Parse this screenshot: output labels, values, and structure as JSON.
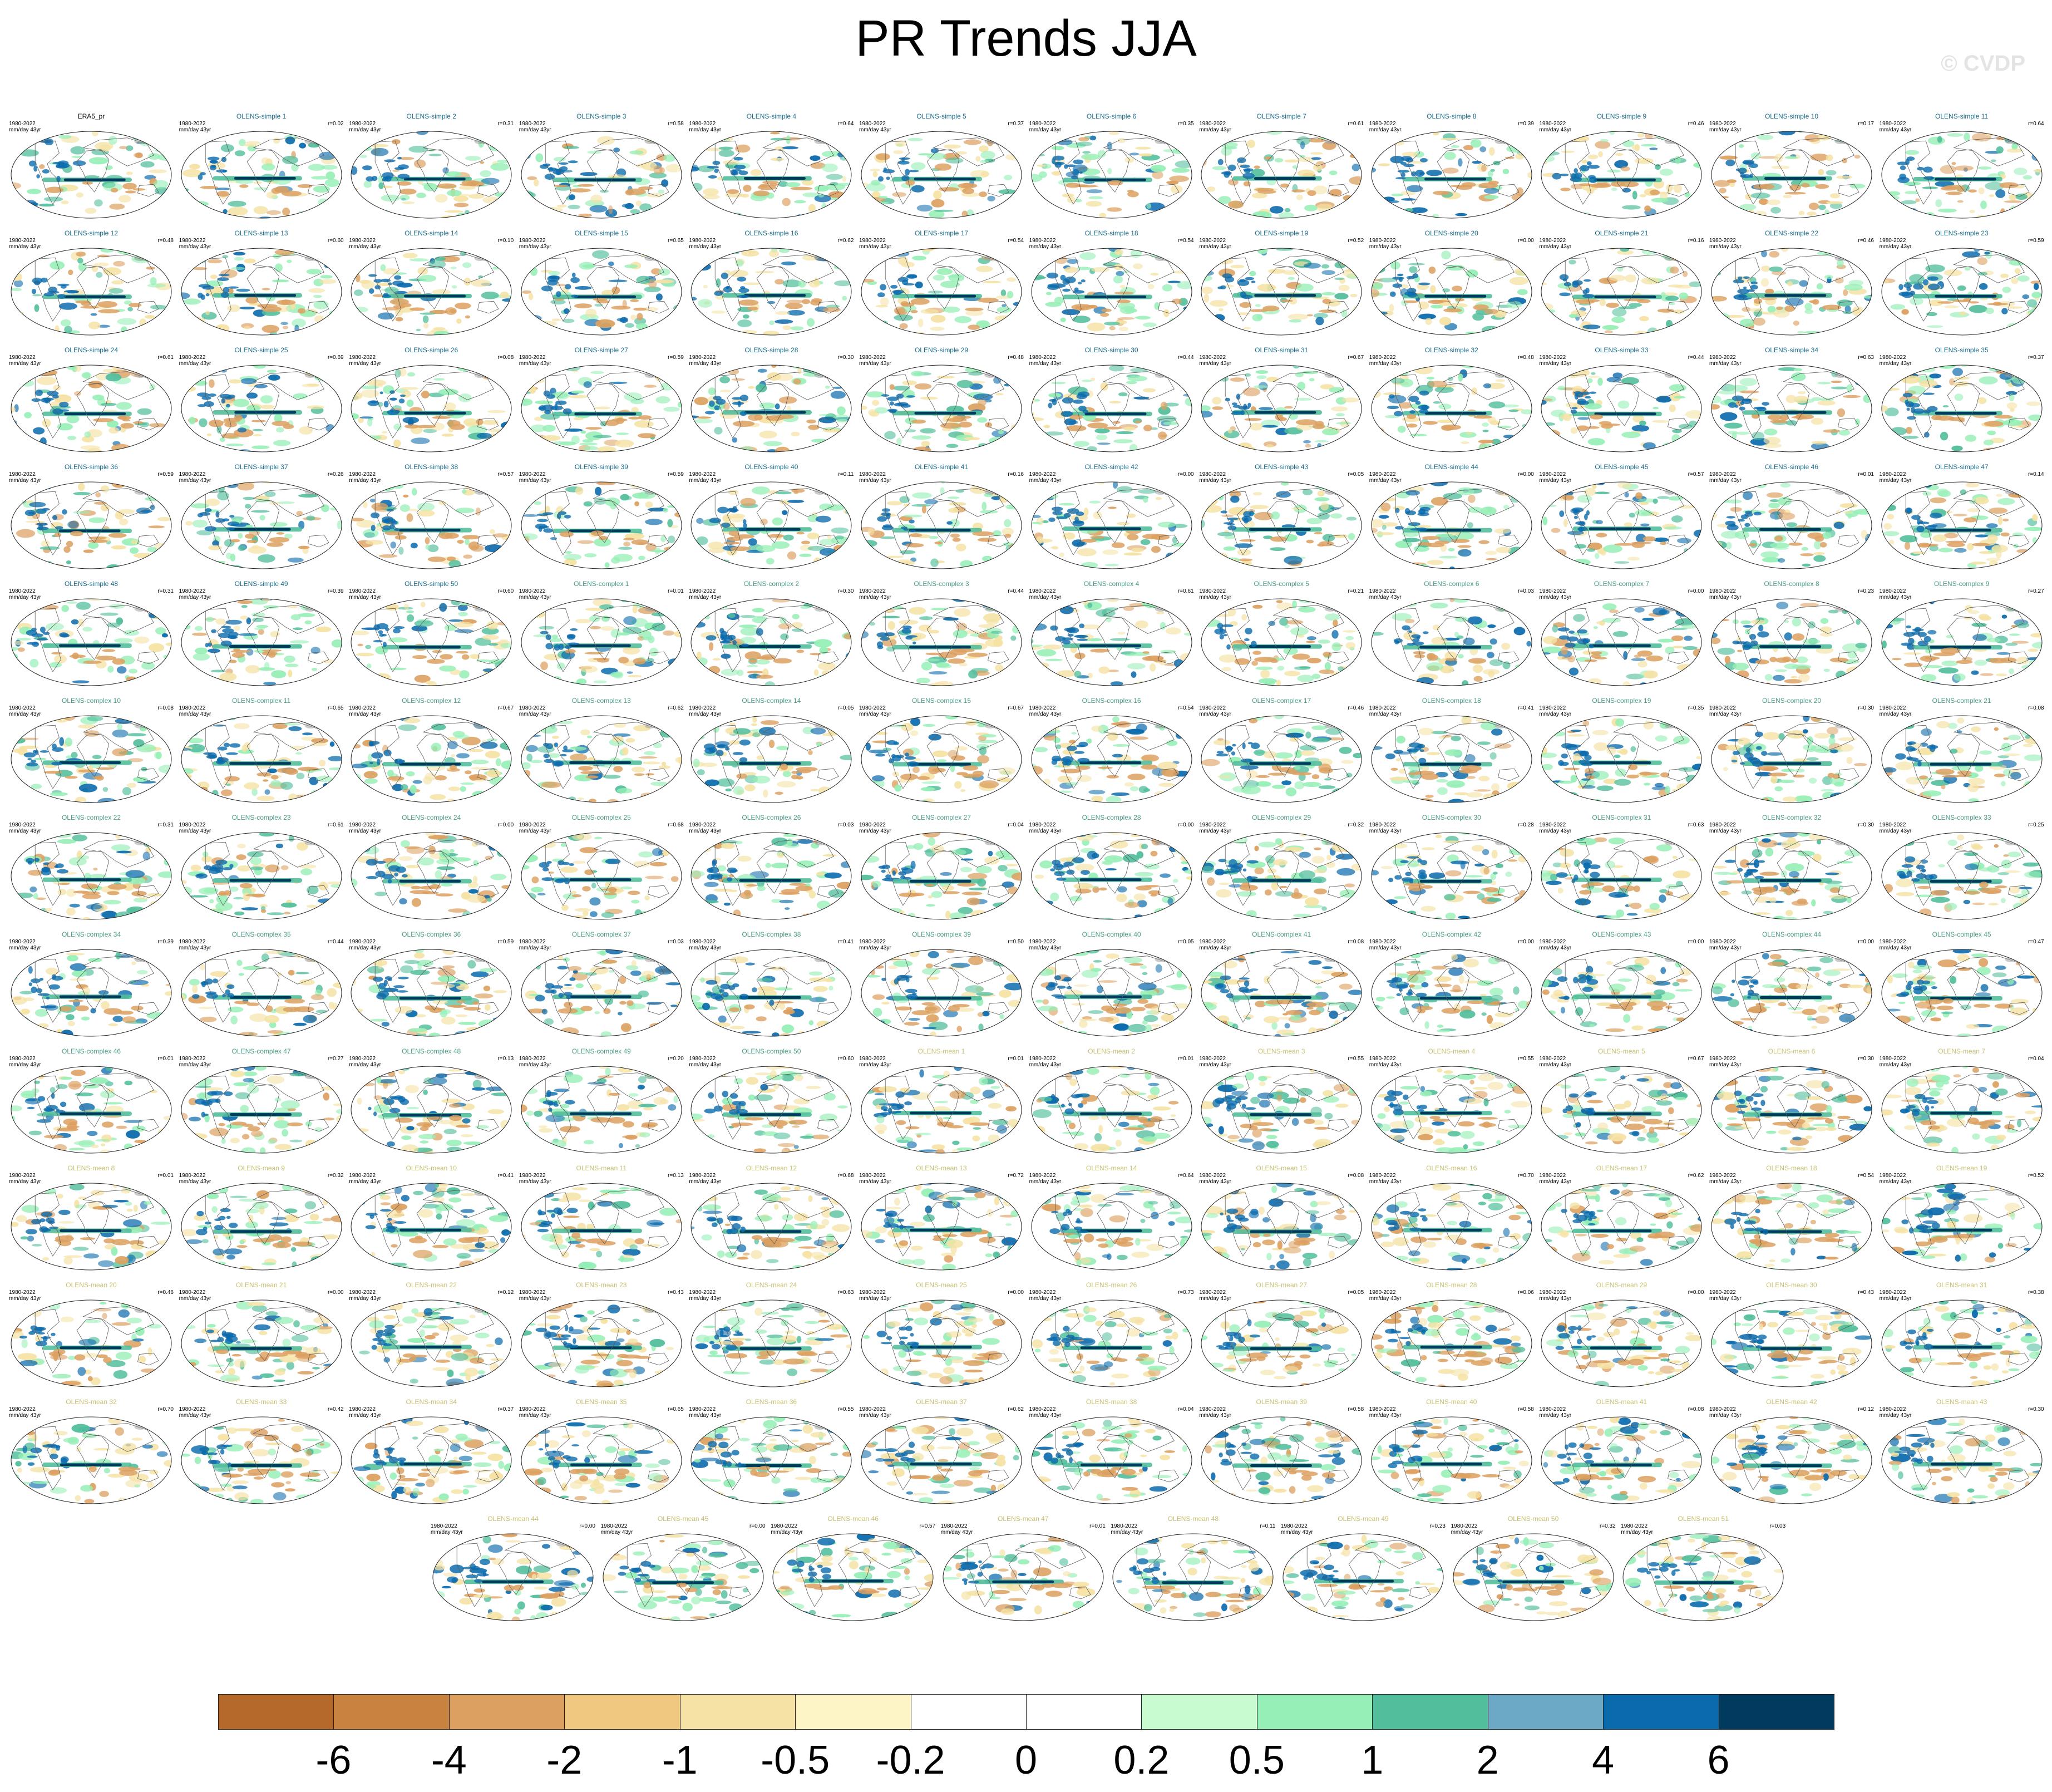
{
  "title": "PR Trends JJA",
  "watermark": "© CVDP",
  "panel_common": {
    "period": "1980-2022",
    "units": "mm/day 43yr"
  },
  "title_colors": {
    "obs": "#000000",
    "simple": "#1a6e8e",
    "complex": "#4a9e8a",
    "mean": "#c8c070"
  },
  "panels": [
    {
      "title": "ERA5_pr",
      "group": "obs",
      "r": ""
    },
    {
      "title": "OLENS-simple 1",
      "group": "simple",
      "r": "r=0.02"
    },
    {
      "title": "OLENS-simple 2",
      "group": "simple",
      "r": "r=0.31"
    },
    {
      "title": "OLENS-simple 3",
      "group": "simple",
      "r": "r=0.58"
    },
    {
      "title": "OLENS-simple 4",
      "group": "simple",
      "r": "r=0.64"
    },
    {
      "title": "OLENS-simple 5",
      "group": "simple",
      "r": "r=0.37"
    },
    {
      "title": "OLENS-simple 6",
      "group": "simple",
      "r": "r=0.35"
    },
    {
      "title": "OLENS-simple 7",
      "group": "simple",
      "r": "r=0.61"
    },
    {
      "title": "OLENS-simple 8",
      "group": "simple",
      "r": "r=0.39"
    },
    {
      "title": "OLENS-simple 9",
      "group": "simple",
      "r": "r=0.46"
    },
    {
      "title": "OLENS-simple 10",
      "group": "simple",
      "r": "r=0.17"
    },
    {
      "title": "OLENS-simple 11",
      "group": "simple",
      "r": "r=0.64"
    },
    {
      "title": "OLENS-simple 12",
      "group": "simple",
      "r": "r=0.48"
    },
    {
      "title": "OLENS-simple 13",
      "group": "simple",
      "r": "r=0.60"
    },
    {
      "title": "OLENS-simple 14",
      "group": "simple",
      "r": "r=0.10"
    },
    {
      "title": "OLENS-simple 15",
      "group": "simple",
      "r": "r=0.65"
    },
    {
      "title": "OLENS-simple 16",
      "group": "simple",
      "r": "r=0.62"
    },
    {
      "title": "OLENS-simple 17",
      "group": "simple",
      "r": "r=0.54"
    },
    {
      "title": "OLENS-simple 18",
      "group": "simple",
      "r": "r=0.54"
    },
    {
      "title": "OLENS-simple 19",
      "group": "simple",
      "r": "r=0.52"
    },
    {
      "title": "OLENS-simple 20",
      "group": "simple",
      "r": "r=0.00"
    },
    {
      "title": "OLENS-simple 21",
      "group": "simple",
      "r": "r=0.16"
    },
    {
      "title": "OLENS-simple 22",
      "group": "simple",
      "r": "r=0.46"
    },
    {
      "title": "OLENS-simple 23",
      "group": "simple",
      "r": "r=0.59"
    },
    {
      "title": "OLENS-simple 24",
      "group": "simple",
      "r": "r=0.61"
    },
    {
      "title": "OLENS-simple 25",
      "group": "simple",
      "r": "r=0.69"
    },
    {
      "title": "OLENS-simple 26",
      "group": "simple",
      "r": "r=0.08"
    },
    {
      "title": "OLENS-simple 27",
      "group": "simple",
      "r": "r=0.59"
    },
    {
      "title": "OLENS-simple 28",
      "group": "simple",
      "r": "r=0.30"
    },
    {
      "title": "OLENS-simple 29",
      "group": "simple",
      "r": "r=0.48"
    },
    {
      "title": "OLENS-simple 30",
      "group": "simple",
      "r": "r=0.44"
    },
    {
      "title": "OLENS-simple 31",
      "group": "simple",
      "r": "r=0.67"
    },
    {
      "title": "OLENS-simple 32",
      "group": "simple",
      "r": "r=0.48"
    },
    {
      "title": "OLENS-simple 33",
      "group": "simple",
      "r": "r=0.44"
    },
    {
      "title": "OLENS-simple 34",
      "group": "simple",
      "r": "r=0.63"
    },
    {
      "title": "OLENS-simple 35",
      "group": "simple",
      "r": "r=0.37"
    },
    {
      "title": "OLENS-simple 36",
      "group": "simple",
      "r": "r=0.59"
    },
    {
      "title": "OLENS-simple 37",
      "group": "simple",
      "r": "r=0.26"
    },
    {
      "title": "OLENS-simple 38",
      "group": "simple",
      "r": "r=0.57"
    },
    {
      "title": "OLENS-simple 39",
      "group": "simple",
      "r": "r=0.59"
    },
    {
      "title": "OLENS-simple 40",
      "group": "simple",
      "r": "r=0.11"
    },
    {
      "title": "OLENS-simple 41",
      "group": "simple",
      "r": "r=0.16"
    },
    {
      "title": "OLENS-simple 42",
      "group": "simple",
      "r": "r=0.00"
    },
    {
      "title": "OLENS-simple 43",
      "group": "simple",
      "r": "r=0.05"
    },
    {
      "title": "OLENS-simple 44",
      "group": "simple",
      "r": "r=0.00"
    },
    {
      "title": "OLENS-simple 45",
      "group": "simple",
      "r": "r=0.57"
    },
    {
      "title": "OLENS-simple 46",
      "group": "simple",
      "r": "r=0.01"
    },
    {
      "title": "OLENS-simple 47",
      "group": "simple",
      "r": "r=0.14"
    },
    {
      "title": "OLENS-simple 48",
      "group": "simple",
      "r": "r=0.31"
    },
    {
      "title": "OLENS-simple 49",
      "group": "simple",
      "r": "r=0.39"
    },
    {
      "title": "OLENS-simple 50",
      "group": "simple",
      "r": "r=0.60"
    },
    {
      "title": "OLENS-complex 1",
      "group": "complex",
      "r": "r=0.01"
    },
    {
      "title": "OLENS-complex 2",
      "group": "complex",
      "r": "r=0.30"
    },
    {
      "title": "OLENS-complex 3",
      "group": "complex",
      "r": "r=0.44"
    },
    {
      "title": "OLENS-complex 4",
      "group": "complex",
      "r": "r=0.61"
    },
    {
      "title": "OLENS-complex 5",
      "group": "complex",
      "r": "r=0.21"
    },
    {
      "title": "OLENS-complex 6",
      "group": "complex",
      "r": "r=0.03"
    },
    {
      "title": "OLENS-complex 7",
      "group": "complex",
      "r": "r=0.00"
    },
    {
      "title": "OLENS-complex 8",
      "group": "complex",
      "r": "r=0.23"
    },
    {
      "title": "OLENS-complex 9",
      "group": "complex",
      "r": "r=0.27"
    },
    {
      "title": "OLENS-complex 10",
      "group": "complex",
      "r": "r=0.08"
    },
    {
      "title": "OLENS-complex 11",
      "group": "complex",
      "r": "r=0.65"
    },
    {
      "title": "OLENS-complex 12",
      "group": "complex",
      "r": "r=0.67"
    },
    {
      "title": "OLENS-complex 13",
      "group": "complex",
      "r": "r=0.62"
    },
    {
      "title": "OLENS-complex 14",
      "group": "complex",
      "r": "r=0.05"
    },
    {
      "title": "OLENS-complex 15",
      "group": "complex",
      "r": "r=0.67"
    },
    {
      "title": "OLENS-complex 16",
      "group": "complex",
      "r": "r=0.54"
    },
    {
      "title": "OLENS-complex 17",
      "group": "complex",
      "r": "r=0.46"
    },
    {
      "title": "OLENS-complex 18",
      "group": "complex",
      "r": "r=0.41"
    },
    {
      "title": "OLENS-complex 19",
      "group": "complex",
      "r": "r=0.35"
    },
    {
      "title": "OLENS-complex 20",
      "group": "complex",
      "r": "r=0.30"
    },
    {
      "title": "OLENS-complex 21",
      "group": "complex",
      "r": "r=0.08"
    },
    {
      "title": "OLENS-complex 22",
      "group": "complex",
      "r": "r=0.31"
    },
    {
      "title": "OLENS-complex 23",
      "group": "complex",
      "r": "r=0.61"
    },
    {
      "title": "OLENS-complex 24",
      "group": "complex",
      "r": "r=0.00"
    },
    {
      "title": "OLENS-complex 25",
      "group": "complex",
      "r": "r=0.68"
    },
    {
      "title": "OLENS-complex 26",
      "group": "complex",
      "r": "r=0.03"
    },
    {
      "title": "OLENS-complex 27",
      "group": "complex",
      "r": "r=0.04"
    },
    {
      "title": "OLENS-complex 28",
      "group": "complex",
      "r": "r=0.00"
    },
    {
      "title": "OLENS-complex 29",
      "group": "complex",
      "r": "r=0.32"
    },
    {
      "title": "OLENS-complex 30",
      "group": "complex",
      "r": "r=0.28"
    },
    {
      "title": "OLENS-complex 31",
      "group": "complex",
      "r": "r=0.63"
    },
    {
      "title": "OLENS-complex 32",
      "group": "complex",
      "r": "r=0.30"
    },
    {
      "title": "OLENS-complex 33",
      "group": "complex",
      "r": "r=0.25"
    },
    {
      "title": "OLENS-complex 34",
      "group": "complex",
      "r": "r=0.39"
    },
    {
      "title": "OLENS-complex 35",
      "group": "complex",
      "r": "r=0.44"
    },
    {
      "title": "OLENS-complex 36",
      "group": "complex",
      "r": "r=0.59"
    },
    {
      "title": "OLENS-complex 37",
      "group": "complex",
      "r": "r=0.03"
    },
    {
      "title": "OLENS-complex 38",
      "group": "complex",
      "r": "r=0.41"
    },
    {
      "title": "OLENS-complex 39",
      "group": "complex",
      "r": "r=0.50"
    },
    {
      "title": "OLENS-complex 40",
      "group": "complex",
      "r": "r=0.05"
    },
    {
      "title": "OLENS-complex 41",
      "group": "complex",
      "r": "r=0.08"
    },
    {
      "title": "OLENS-complex 42",
      "group": "complex",
      "r": "r=0.00"
    },
    {
      "title": "OLENS-complex 43",
      "group": "complex",
      "r": "r=0.00"
    },
    {
      "title": "OLENS-complex 44",
      "group": "complex",
      "r": "r=0.00"
    },
    {
      "title": "OLENS-complex 45",
      "group": "complex",
      "r": "r=0.47"
    },
    {
      "title": "OLENS-complex 46",
      "group": "complex",
      "r": "r=0.01"
    },
    {
      "title": "OLENS-complex 47",
      "group": "complex",
      "r": "r=0.27"
    },
    {
      "title": "OLENS-complex 48",
      "group": "complex",
      "r": "r=0.13"
    },
    {
      "title": "OLENS-complex 49",
      "group": "complex",
      "r": "r=0.20"
    },
    {
      "title": "OLENS-complex 50",
      "group": "complex",
      "r": "r=0.60"
    },
    {
      "title": "OLENS-mean 1",
      "group": "mean",
      "r": "r=0.01"
    },
    {
      "title": "OLENS-mean 2",
      "group": "mean",
      "r": "r=0.01"
    },
    {
      "title": "OLENS-mean 3",
      "group": "mean",
      "r": "r=0.55"
    },
    {
      "title": "OLENS-mean 4",
      "group": "mean",
      "r": "r=0.55"
    },
    {
      "title": "OLENS-mean 5",
      "group": "mean",
      "r": "r=0.67"
    },
    {
      "title": "OLENS-mean 6",
      "group": "mean",
      "r": "r=0.30"
    },
    {
      "title": "OLENS-mean 7",
      "group": "mean",
      "r": "r=0.04"
    },
    {
      "title": "OLENS-mean 8",
      "group": "mean",
      "r": "r=0.01"
    },
    {
      "title": "OLENS-mean 9",
      "group": "mean",
      "r": "r=0.32"
    },
    {
      "title": "OLENS-mean 10",
      "group": "mean",
      "r": "r=0.41"
    },
    {
      "title": "OLENS-mean 11",
      "group": "mean",
      "r": "r=0.13"
    },
    {
      "title": "OLENS-mean 12",
      "group": "mean",
      "r": "r=0.68"
    },
    {
      "title": "OLENS-mean 13",
      "group": "mean",
      "r": "r=0.72"
    },
    {
      "title": "OLENS-mean 14",
      "group": "mean",
      "r": "r=0.64"
    },
    {
      "title": "OLENS-mean 15",
      "group": "mean",
      "r": "r=0.08"
    },
    {
      "title": "OLENS-mean 16",
      "group": "mean",
      "r": "r=0.70"
    },
    {
      "title": "OLENS-mean 17",
      "group": "mean",
      "r": "r=0.62"
    },
    {
      "title": "OLENS-mean 18",
      "group": "mean",
      "r": "r=0.54"
    },
    {
      "title": "OLENS-mean 19",
      "group": "mean",
      "r": "r=0.52"
    },
    {
      "title": "OLENS-mean 20",
      "group": "mean",
      "r": "r=0.46"
    },
    {
      "title": "OLENS-mean 21",
      "group": "mean",
      "r": "r=0.00"
    },
    {
      "title": "OLENS-mean 22",
      "group": "mean",
      "r": "r=0.12"
    },
    {
      "title": "OLENS-mean 23",
      "group": "mean",
      "r": "r=0.43"
    },
    {
      "title": "OLENS-mean 24",
      "group": "mean",
      "r": "r=0.63"
    },
    {
      "title": "OLENS-mean 25",
      "group": "mean",
      "r": "r=0.00"
    },
    {
      "title": "OLENS-mean 26",
      "group": "mean",
      "r": "r=0.73"
    },
    {
      "title": "OLENS-mean 27",
      "group": "mean",
      "r": "r=0.05"
    },
    {
      "title": "OLENS-mean 28",
      "group": "mean",
      "r": "r=0.06"
    },
    {
      "title": "OLENS-mean 29",
      "group": "mean",
      "r": "r=0.00"
    },
    {
      "title": "OLENS-mean 30",
      "group": "mean",
      "r": "r=0.43"
    },
    {
      "title": "OLENS-mean 31",
      "group": "mean",
      "r": "r=0.38"
    },
    {
      "title": "OLENS-mean 32",
      "group": "mean",
      "r": "r=0.70"
    },
    {
      "title": "OLENS-mean 33",
      "group": "mean",
      "r": "r=0.42"
    },
    {
      "title": "OLENS-mean 34",
      "group": "mean",
      "r": "r=0.37"
    },
    {
      "title": "OLENS-mean 35",
      "group": "mean",
      "r": "r=0.65"
    },
    {
      "title": "OLENS-mean 36",
      "group": "mean",
      "r": "r=0.55"
    },
    {
      "title": "OLENS-mean 37",
      "group": "mean",
      "r": "r=0.62"
    },
    {
      "title": "OLENS-mean 38",
      "group": "mean",
      "r": "r=0.04"
    },
    {
      "title": "OLENS-mean 39",
      "group": "mean",
      "r": "r=0.58"
    },
    {
      "title": "OLENS-mean 40",
      "group": "mean",
      "r": "r=0.58"
    },
    {
      "title": "OLENS-mean 41",
      "group": "mean",
      "r": "r=0.08"
    },
    {
      "title": "OLENS-mean 42",
      "group": "mean",
      "r": "r=0.12"
    },
    {
      "title": "OLENS-mean 43",
      "group": "mean",
      "r": "r=0.30"
    },
    {
      "title": "OLENS-mean 44",
      "group": "mean",
      "r": "r=0.00"
    },
    {
      "title": "OLENS-mean 45",
      "group": "mean",
      "r": "r=0.00"
    },
    {
      "title": "OLENS-mean 46",
      "group": "mean",
      "r": "r=0.57"
    },
    {
      "title": "OLENS-mean 47",
      "group": "mean",
      "r": "r=0.01"
    },
    {
      "title": "OLENS-mean 48",
      "group": "mean",
      "r": "r=0.11"
    },
    {
      "title": "OLENS-mean 49",
      "group": "mean",
      "r": "r=0.23"
    },
    {
      "title": "OLENS-mean 50",
      "group": "mean",
      "r": "r=0.32"
    },
    {
      "title": "OLENS-mean 51",
      "group": "mean",
      "r": "r=0.03"
    }
  ],
  "colorbar": {
    "colors": [
      "#b5692b",
      "#c98340",
      "#dca060",
      "#f0c880",
      "#f5e2a4",
      "#fdf5c6",
      "#ffffff",
      "#ffffff",
      "#c8fcd0",
      "#96efb6",
      "#52be9c",
      "#6ba9c6",
      "#0a6aac",
      "#003a5e"
    ],
    "tick_labels": [
      "-6",
      "-4",
      "-2",
      "-1",
      "-0.5",
      "-0.2",
      "0",
      "0.2",
      "0.5",
      "1",
      "2",
      "4",
      "6"
    ]
  },
  "map_palette": {
    "land": "#ffffff",
    "coast": "#5a5a5a",
    "ice": "#9a9a9a",
    "wet_strong": "#003a5e",
    "wet_mid": "#0a6aac",
    "wet_light": "#52be9c",
    "wet_pale": "#96efb6",
    "dry_pale": "#f5e2a4",
    "dry_mid": "#dca060"
  }
}
